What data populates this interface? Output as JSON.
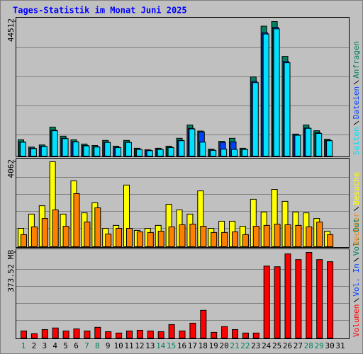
{
  "title": "Tages-Statistik im Monat Juni 2025",
  "chart_data": [
    {
      "type": "bar",
      "categories": [
        "1",
        "2",
        "3",
        "4",
        "5",
        "6",
        "7",
        "8",
        "9",
        "10",
        "11",
        "12",
        "13",
        "14",
        "15",
        "16",
        "17",
        "18",
        "19",
        "20",
        "21",
        "22",
        "23",
        "24",
        "25",
        "26",
        "27",
        "28",
        "29",
        "30",
        "31"
      ],
      "weekend_color": "#008060",
      "weekday_color": "#000000",
      "weekends": [
        1,
        7,
        8,
        14,
        15,
        21,
        22,
        28,
        29
      ],
      "series": [
        {
          "name": "Anfragen",
          "color": "#008060",
          "values": [
            5400,
            3000,
            3700,
            9600,
            6600,
            5400,
            4000,
            3500,
            5200,
            3300,
            5200,
            2600,
            2100,
            2600,
            3300,
            5900,
            10300,
            8300,
            2300,
            4900,
            5900,
            2600,
            26200,
            43000,
            44512,
            33000,
            7300,
            10300,
            8400,
            5600,
            null
          ]
        },
        {
          "name": "Dateien",
          "color": "#0040ff",
          "values": [
            4700,
            2600,
            3300,
            8600,
            5900,
            4800,
            3500,
            3100,
            4600,
            2900,
            4600,
            2300,
            1900,
            2300,
            2900,
            5200,
            9200,
            8000,
            2000,
            4500,
            4700,
            2300,
            24700,
            40800,
            42600,
            31300,
            7000,
            9300,
            7700,
            5200,
            null
          ]
        },
        {
          "name": "Seiten",
          "color": "#00e0ff",
          "values": [
            4600,
            2500,
            3200,
            8400,
            5800,
            4700,
            3400,
            3000,
            4500,
            2800,
            4500,
            2200,
            1800,
            2200,
            2800,
            5100,
            9000,
            4600,
            1900,
            2300,
            2200,
            2200,
            24300,
            40400,
            42100,
            30900,
            6900,
            9200,
            7500,
            5100,
            null
          ]
        }
      ],
      "ylim": [
        0,
        44512
      ],
      "yticks": [
        44512
      ]
    },
    {
      "type": "bar",
      "series": [
        {
          "name": "Besuche",
          "color": "#ffff00",
          "values": [
            880,
            1560,
            1960,
            4062,
            1560,
            3150,
            1620,
            2100,
            880,
            1020,
            2950,
            780,
            880,
            1020,
            2030,
            1760,
            1560,
            2670,
            880,
            1220,
            1220,
            980,
            2270,
            1660,
            2740,
            2170,
            1660,
            1620,
            1350,
            740,
            null
          ]
        },
        {
          "name": "Rechner",
          "color": "#ff8000",
          "values": [
            580,
            950,
            1350,
            1760,
            980,
            2540,
            1180,
            1860,
            610,
            880,
            880,
            710,
            680,
            740,
            950,
            1050,
            1080,
            980,
            680,
            680,
            710,
            580,
            980,
            1020,
            1080,
            1050,
            1020,
            950,
            1180,
            580,
            null
          ]
        }
      ],
      "ylim": [
        0,
        4062
      ],
      "yticks": [
        4062
      ]
    },
    {
      "type": "bar",
      "series": [
        {
          "name": "Volumen",
          "color": "#ff0000",
          "values": [
            31,
            19,
            37,
            44,
            31,
            40,
            31,
            47,
            28,
            22,
            31,
            34,
            31,
            28,
            59,
            31,
            65,
            121,
            25,
            50,
            37,
            22,
            22,
            314,
            311,
            367,
            342,
            373.52,
            342,
            333,
            null
          ]
        }
      ],
      "legend_extra": [
        {
          "name": "Vol. In",
          "color": "#0040ff"
        },
        {
          "name": "Vol. Out",
          "color": "#008060"
        }
      ],
      "ylim": [
        0,
        373.52
      ],
      "yticks": [
        {
          "value": 373.52,
          "label": "373.52 MB"
        }
      ]
    }
  ]
}
